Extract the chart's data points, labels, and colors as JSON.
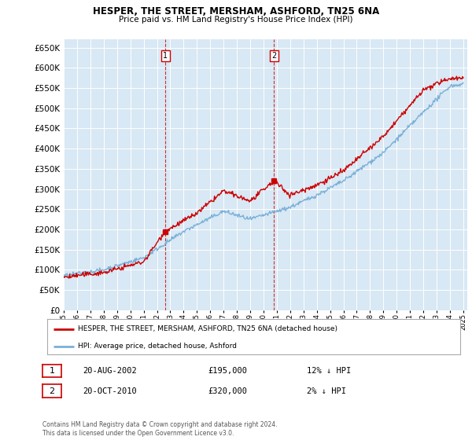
{
  "title": "HESPER, THE STREET, MERSHAM, ASHFORD, TN25 6NA",
  "subtitle": "Price paid vs. HM Land Registry's House Price Index (HPI)",
  "plot_bg_color": "#d8e8f4",
  "ylim": [
    0,
    670000
  ],
  "yticks": [
    0,
    50000,
    100000,
    150000,
    200000,
    250000,
    300000,
    350000,
    400000,
    450000,
    500000,
    550000,
    600000,
    650000
  ],
  "hpi_color": "#7ab0d8",
  "price_color": "#cc0000",
  "marker1_year": 2002.62,
  "marker1_price": 195000,
  "marker2_year": 2010.79,
  "marker2_price": 320000,
  "legend_label_price": "HESPER, THE STREET, MERSHAM, ASHFORD, TN25 6NA (detached house)",
  "legend_label_hpi": "HPI: Average price, detached house, Ashford",
  "annotation1_label": "1",
  "annotation1_date": "20-AUG-2002",
  "annotation1_price": "£195,000",
  "annotation1_hpi": "12% ↓ HPI",
  "annotation2_label": "2",
  "annotation2_date": "20-OCT-2010",
  "annotation2_price": "£320,000",
  "annotation2_hpi": "2% ↓ HPI",
  "footer": "Contains HM Land Registry data © Crown copyright and database right 2024.\nThis data is licensed under the Open Government Licence v3.0."
}
